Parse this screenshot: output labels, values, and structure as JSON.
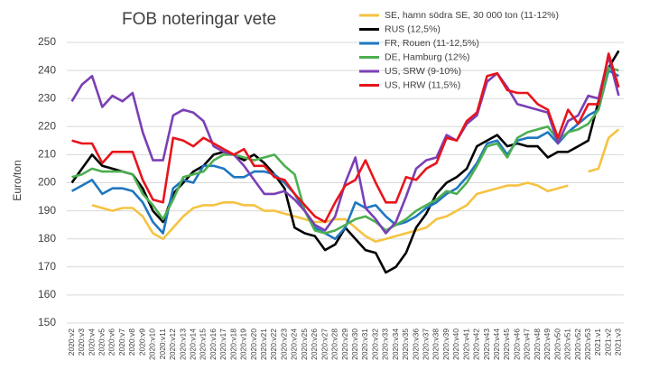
{
  "chart_data": {
    "type": "line",
    "title": "FOB noteringar vete",
    "y_label": "Euro/ton",
    "categories": [
      "2020:v2",
      "2020:v3",
      "2020:v4",
      "2020:v5",
      "2020:v6",
      "2020:v7",
      "2020:v8",
      "2020:v9",
      "2020:v10",
      "2020:v11",
      "2020:v12",
      "2020:v13",
      "2020:v14",
      "2020:v15",
      "2020:v16",
      "2020:v17",
      "2020:v18",
      "2020:v19",
      "2020:v20",
      "2020:v21",
      "2020:v22",
      "2020:v23",
      "2020:v24",
      "2020:v25",
      "2020:v26",
      "2020:v27",
      "2020:v28",
      "2020:v29",
      "2020:v30",
      "2020:v31",
      "2020:v32",
      "2020:v33",
      "2020:v34",
      "2020:v35",
      "2020:v36",
      "2020:v37",
      "2020:v38",
      "2020:v39",
      "2020:v40",
      "2020:v41",
      "2020:v42",
      "2020:v43",
      "2020:v44",
      "2020:v45",
      "2020:v46",
      "2020:v47",
      "2020:v48",
      "2020:v49",
      "2020:v50",
      "2020:v51",
      "2020:v52",
      "2020:v53",
      "2021:v1",
      "2021:v2",
      "2021:v3"
    ],
    "series": [
      {
        "name": "SE, hamn södra SE, 30 000 ton (11-12%)",
        "color": "#f5c342",
        "values": [
          null,
          null,
          192,
          191,
          190,
          191,
          191,
          188,
          182,
          180,
          184,
          188,
          191,
          192,
          192,
          193,
          193,
          192,
          192,
          190,
          190,
          189,
          188,
          187,
          186,
          186,
          187,
          187,
          184,
          181,
          179,
          180,
          181,
          182,
          183,
          184,
          187,
          188,
          190,
          192,
          196,
          197,
          198,
          199,
          199,
          200,
          199,
          197,
          198,
          199,
          null,
          204,
          205,
          216,
          219
        ]
      },
      {
        "name": "RUS (12,5%)",
        "color": "#000000",
        "values": [
          200,
          205,
          210,
          206,
          205,
          204,
          203,
          198,
          190,
          186,
          196,
          200,
          204,
          206,
          210,
          211,
          210,
          208,
          210,
          207,
          203,
          198,
          184,
          182,
          181,
          176,
          178,
          184,
          180,
          176,
          175,
          168,
          170,
          175,
          184,
          189,
          196,
          200,
          202,
          205,
          213,
          215,
          217,
          213,
          214,
          213,
          213,
          209,
          211,
          211,
          213,
          215,
          229,
          241,
          247
        ]
      },
      {
        "name": "FR, Rouen (11-12,5%)",
        "color": "#1f77c0",
        "values": [
          197,
          199,
          201,
          196,
          198,
          198,
          197,
          193,
          186,
          182,
          198,
          201,
          200,
          206,
          206,
          205,
          202,
          202,
          204,
          204,
          203,
          200,
          196,
          190,
          184,
          182,
          180,
          184,
          193,
          191,
          192,
          188,
          185,
          186,
          188,
          191,
          193,
          196,
          198,
          202,
          207,
          214,
          215,
          210,
          215,
          216,
          216,
          218,
          214,
          218,
          221,
          224,
          226,
          240,
          238
        ]
      },
      {
        "name": "DE, Hamburg (12%)",
        "color": "#4caf50",
        "values": [
          202,
          203,
          205,
          204,
          204,
          204,
          203,
          196,
          192,
          187,
          194,
          202,
          203,
          204,
          208,
          210,
          210,
          209,
          208,
          209,
          210,
          206,
          203,
          190,
          183,
          182,
          183,
          185,
          187,
          188,
          186,
          183,
          185,
          187,
          190,
          192,
          194,
          197,
          196,
          200,
          206,
          213,
          214,
          209,
          216,
          218,
          219,
          220,
          215,
          218,
          219,
          221,
          226,
          241,
          240
        ]
      },
      {
        "name": "US, SRW (9-10%)",
        "color": "#7b3fb5",
        "values": [
          229,
          235,
          238,
          227,
          231,
          229,
          232,
          218,
          208,
          208,
          224,
          226,
          225,
          222,
          213,
          211,
          210,
          206,
          201,
          196,
          196,
          197,
          194,
          190,
          185,
          183,
          188,
          200,
          209,
          191,
          187,
          182,
          186,
          195,
          205,
          208,
          209,
          217,
          215,
          221,
          224,
          236,
          239,
          234,
          228,
          227,
          226,
          225,
          214,
          222,
          224,
          231,
          230,
          245,
          231
        ]
      },
      {
        "name": "US, HRW (11,5%)",
        "color": "#e8141c",
        "values": [
          215,
          214,
          214,
          207,
          211,
          211,
          211,
          201,
          194,
          193,
          216,
          215,
          213,
          216,
          214,
          212,
          210,
          212,
          206,
          206,
          202,
          201,
          196,
          192,
          188,
          186,
          193,
          199,
          201,
          208,
          200,
          193,
          193,
          202,
          201,
          205,
          207,
          216,
          215,
          222,
          225,
          238,
          239,
          233,
          232,
          232,
          228,
          226,
          216,
          226,
          221,
          228,
          228,
          246,
          234
        ]
      }
    ],
    "ylim": [
      150,
      250
    ],
    "yticks": [
      150,
      160,
      170,
      180,
      190,
      200,
      210,
      220,
      230,
      240,
      250
    ],
    "grid": true,
    "legend": "top-right"
  }
}
